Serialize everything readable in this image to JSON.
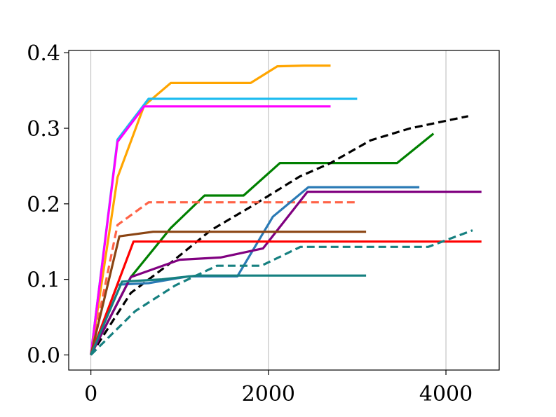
{
  "chart_data": {
    "type": "line",
    "xlabel": "",
    "ylabel": "",
    "xlim": [
      -250,
      4600
    ],
    "ylim": [
      -0.02,
      0.403
    ],
    "x_grid": true,
    "y_grid": false,
    "x_ticks": [
      0,
      2000,
      4000
    ],
    "y_ticks": [
      0.0,
      0.1,
      0.2,
      0.3,
      0.4
    ],
    "x_tick_labels": [
      "0",
      "2000",
      "4000"
    ],
    "y_tick_labels": [
      "0.0",
      "0.1",
      "0.2",
      "0.3",
      "0.4"
    ],
    "series": [
      {
        "color": "#ffa500",
        "dash": "solid",
        "x": [
          0,
          300,
          600,
          900,
          1200,
          1800,
          2100,
          2400,
          2700
        ],
        "y": [
          0.0,
          0.235,
          0.33,
          0.36,
          0.36,
          0.36,
          0.382,
          0.383,
          0.383
        ]
      },
      {
        "color": "#1ebcf0",
        "dash": "solid",
        "x": [
          0,
          300,
          650,
          1000,
          3000
        ],
        "y": [
          0.0,
          0.285,
          0.339,
          0.339,
          0.339
        ]
      },
      {
        "color": "#ff00ff",
        "dash": "solid",
        "x": [
          0,
          300,
          600,
          1000,
          2700
        ],
        "y": [
          0.0,
          0.282,
          0.329,
          0.329,
          0.329
        ]
      },
      {
        "color": "#008000",
        "dash": "solid",
        "x": [
          0,
          450,
          900,
          1280,
          1720,
          2130,
          2600,
          3450,
          3860
        ],
        "y": [
          0.0,
          0.103,
          0.168,
          0.211,
          0.211,
          0.254,
          0.254,
          0.254,
          0.293
        ]
      },
      {
        "color": "#000000",
        "dash": "dashed",
        "x": [
          0,
          450,
          900,
          1350,
          1800,
          2350,
          2700,
          3150,
          3600,
          4250
        ],
        "y": [
          0.0,
          0.082,
          0.122,
          0.165,
          0.196,
          0.236,
          0.254,
          0.284,
          0.3,
          0.316
        ]
      },
      {
        "color": "#ff6347",
        "dash": "dashed",
        "x": [
          0,
          300,
          650,
          1000,
          2000,
          3000
        ],
        "y": [
          0.0,
          0.172,
          0.202,
          0.202,
          0.202,
          0.202
        ]
      },
      {
        "color": "#2a7ab5",
        "dash": "solid",
        "x": [
          0,
          300,
          650,
          1100,
          1650,
          2050,
          2450,
          3000,
          3700
        ],
        "y": [
          0.0,
          0.093,
          0.095,
          0.104,
          0.104,
          0.183,
          0.222,
          0.222,
          0.222
        ]
      },
      {
        "color": "#800080",
        "dash": "solid",
        "x": [
          0,
          450,
          1000,
          1460,
          1940,
          2440,
          3000,
          4400
        ],
        "y": [
          0.0,
          0.103,
          0.126,
          0.129,
          0.141,
          0.216,
          0.216,
          0.216
        ]
      },
      {
        "color": "#8b4513",
        "dash": "solid",
        "x": [
          0,
          320,
          700,
          1500,
          3100
        ],
        "y": [
          0.0,
          0.157,
          0.163,
          0.163,
          0.163
        ]
      },
      {
        "color": "#ff0000",
        "dash": "solid",
        "x": [
          0,
          480,
          1000,
          2000,
          4400
        ],
        "y": [
          0.0,
          0.15,
          0.15,
          0.15,
          0.15
        ]
      },
      {
        "color": "#168080",
        "dash": "solid",
        "x": [
          0,
          350,
          800,
          1200,
          3100
        ],
        "y": [
          0.0,
          0.097,
          0.1,
          0.105,
          0.105
        ]
      },
      {
        "color": "#168080",
        "dash": "dashed",
        "x": [
          0,
          500,
          950,
          1420,
          1920,
          2360,
          2900,
          3800,
          4300
        ],
        "y": [
          0.0,
          0.058,
          0.092,
          0.118,
          0.118,
          0.143,
          0.143,
          0.143,
          0.165
        ]
      }
    ]
  }
}
